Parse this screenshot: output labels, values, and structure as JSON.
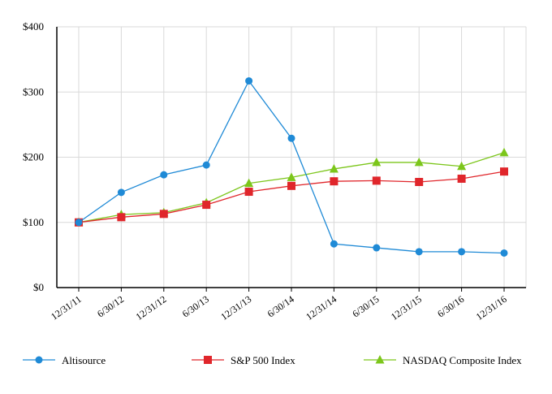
{
  "chart_data": {
    "type": "line",
    "title": "",
    "xlabel": "",
    "ylabel": "",
    "ylim": [
      0,
      400
    ],
    "grid": true,
    "legend_position": "bottom",
    "categories": [
      "12/31/11",
      "6/30/12",
      "12/31/12",
      "6/30/13",
      "12/31/13",
      "6/30/14",
      "12/31/14",
      "6/30/15",
      "12/31/15",
      "6/30/16",
      "12/31/16"
    ],
    "y_ticks": [
      {
        "value": 0,
        "label": "$0"
      },
      {
        "value": 100,
        "label": "$100"
      },
      {
        "value": 200,
        "label": "$200"
      },
      {
        "value": 300,
        "label": "$300"
      },
      {
        "value": 400,
        "label": "$400"
      }
    ],
    "series": [
      {
        "name": "Altisource",
        "color": "#1f8ad6",
        "marker": "circle",
        "values": [
          100,
          146,
          173,
          188,
          317,
          229,
          67,
          61,
          55,
          55,
          53
        ]
      },
      {
        "name": "S&P 500 Index",
        "color": "#e0262b",
        "marker": "square",
        "values": [
          100,
          108,
          113,
          127,
          147,
          156,
          163,
          164,
          162,
          167,
          178
        ]
      },
      {
        "name": "NASDAQ Composite Index",
        "color": "#7cc61b",
        "marker": "triangle",
        "values": [
          100,
          112,
          115,
          130,
          160,
          169,
          182,
          192,
          192,
          186,
          207
        ]
      }
    ]
  }
}
